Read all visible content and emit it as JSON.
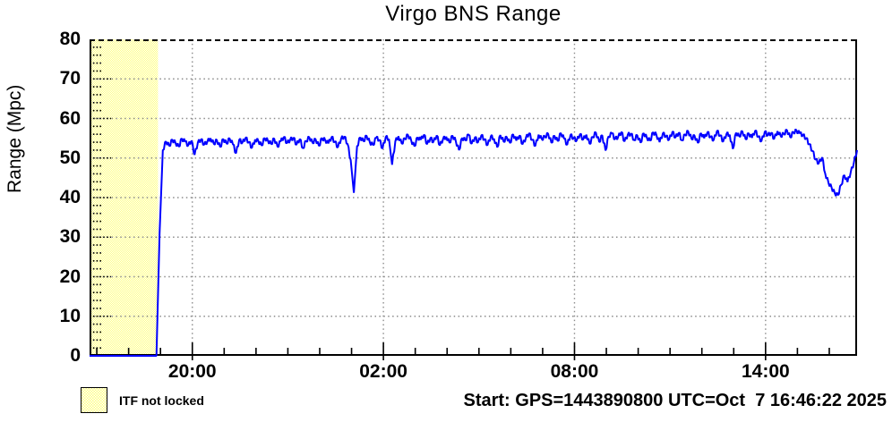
{
  "title": "Virgo BNS Range",
  "y_axis": {
    "label": "Range (Mpc)",
    "lim": [
      0,
      80
    ],
    "tick_values": [
      0,
      10,
      20,
      30,
      40,
      50,
      60,
      70,
      80
    ],
    "tick_labels": [
      "0",
      "10",
      "20",
      "30",
      "40",
      "50",
      "60",
      "70",
      "80"
    ],
    "minor_step": 2
  },
  "x_axis": {
    "span_hours": 24.1,
    "ticks": [
      {
        "t": 3.227,
        "label": "20:00"
      },
      {
        "t": 9.227,
        "label": "02:00"
      },
      {
        "t": 15.227,
        "label": "08:00"
      },
      {
        "t": 21.227,
        "label": "14:00"
      }
    ],
    "minor_tick_start_t": 0.227,
    "minor_tick_interval_hours": 1,
    "minor_tick_count": 24
  },
  "legend": {
    "label": "ITF not locked"
  },
  "footer": "Start: GPS=1443890800 UTC=Oct  7 16:46:22 2025",
  "colors": {
    "series": "#0000ff",
    "grid_dots": "#8c8c8c",
    "tick_dots": "#000000",
    "frame": "#000000",
    "not_locked_pixel": "#ffff80"
  },
  "chart_data": {
    "type": "line",
    "title": "Virgo BNS Range",
    "xlabel": "",
    "ylabel": "Range (Mpc)",
    "ylim": [
      0,
      80
    ],
    "grid": true,
    "legend_position": "bottom-left",
    "x_unit": "hours since start (start = Oct 7 16:46:22 2025 UTC)",
    "x_start_hours": 0,
    "x_step_hours": 0.1,
    "not_locked_t_hours": [
      0,
      2.15
    ],
    "texture_amplitude_mpc": 0.55,
    "series": [
      {
        "name": "BNS range",
        "color": "#0000ff",
        "values": [
          0,
          0,
          0,
          0,
          0,
          0,
          0,
          0,
          0,
          0,
          0,
          0,
          0,
          0,
          0,
          0,
          0,
          0,
          0,
          0,
          0,
          0,
          31,
          52,
          54.2,
          53.1,
          54.6,
          53.8,
          52.9,
          54.9,
          54.1,
          53.2,
          54.4,
          50.8,
          53.9,
          54.7,
          53.4,
          54.2,
          55.0,
          53.6,
          54.5,
          52.8,
          54.8,
          53.7,
          54.9,
          53.5,
          51.2,
          54.6,
          53.9,
          55.1,
          54.0,
          52.6,
          54.7,
          54.3,
          53.2,
          55.0,
          54.4,
          53.6,
          54.9,
          52.9,
          54.2,
          55.3,
          53.8,
          54.6,
          55.1,
          53.4,
          54.8,
          52.5,
          54.3,
          55.2,
          53.9,
          54.7,
          53.1,
          55.0,
          54.5,
          53.7,
          55.3,
          54.1,
          52.8,
          54.9,
          55.4,
          53.6,
          49.5,
          41.2,
          53.0,
          55.2,
          54.3,
          55.6,
          54.0,
          53.3,
          55.1,
          54.6,
          52.4,
          55.3,
          54.8,
          48.3,
          54.2,
          55.5,
          53.7,
          54.9,
          55.8,
          54.4,
          53.0,
          55.2,
          54.6,
          55.9,
          53.5,
          55.0,
          54.1,
          55.7,
          53.2,
          54.8,
          55.4,
          53.9,
          55.6,
          54.3,
          52.0,
          55.1,
          54.5,
          55.9,
          53.6,
          55.2,
          54.0,
          55.7,
          54.7,
          53.3,
          55.5,
          54.9,
          52.7,
          55.8,
          54.2,
          55.3,
          53.8,
          56.0,
          54.4,
          55.7,
          53.5,
          55.1,
          56.2,
          54.6,
          53.1,
          55.9,
          54.8,
          55.4,
          56.1,
          53.9,
          55.6,
          54.3,
          56.3,
          54.9,
          53.4,
          55.8,
          55.0,
          54.5,
          56.0,
          54.7,
          55.9,
          53.6,
          55.3,
          56.4,
          54.1,
          55.7,
          51.9,
          55.5,
          56.2,
          54.8,
          55.4,
          56.6,
          54.2,
          55.9,
          56.1,
          54.6,
          55.7,
          53.9,
          56.3,
          55.1,
          54.4,
          56.5,
          55.8,
          54.0,
          56.2,
          55.5,
          54.7,
          56.6,
          55.2,
          56.4,
          54.5,
          55.9,
          56.7,
          54.9,
          55.6,
          53.8,
          56.3,
          55.0,
          56.5,
          55.3,
          54.6,
          56.8,
          55.7,
          54.2,
          56.1,
          55.9,
          52.3,
          56.4,
          55.5,
          56.7,
          54.8,
          56.2,
          55.1,
          56.9,
          55.4,
          54.3,
          56.6,
          55.8,
          56.3,
          54.9,
          56.8,
          55.6,
          56.1,
          57.0,
          55.3,
          56.5,
          56.9,
          56.2,
          55.8,
          55.0,
          53.5,
          51.8,
          49.6,
          48.7,
          50.2,
          46.1,
          43.8,
          42.5,
          41.1,
          40.6,
          43.2,
          45.7,
          43.9,
          46.4,
          48.8,
          52.0
        ]
      }
    ]
  }
}
